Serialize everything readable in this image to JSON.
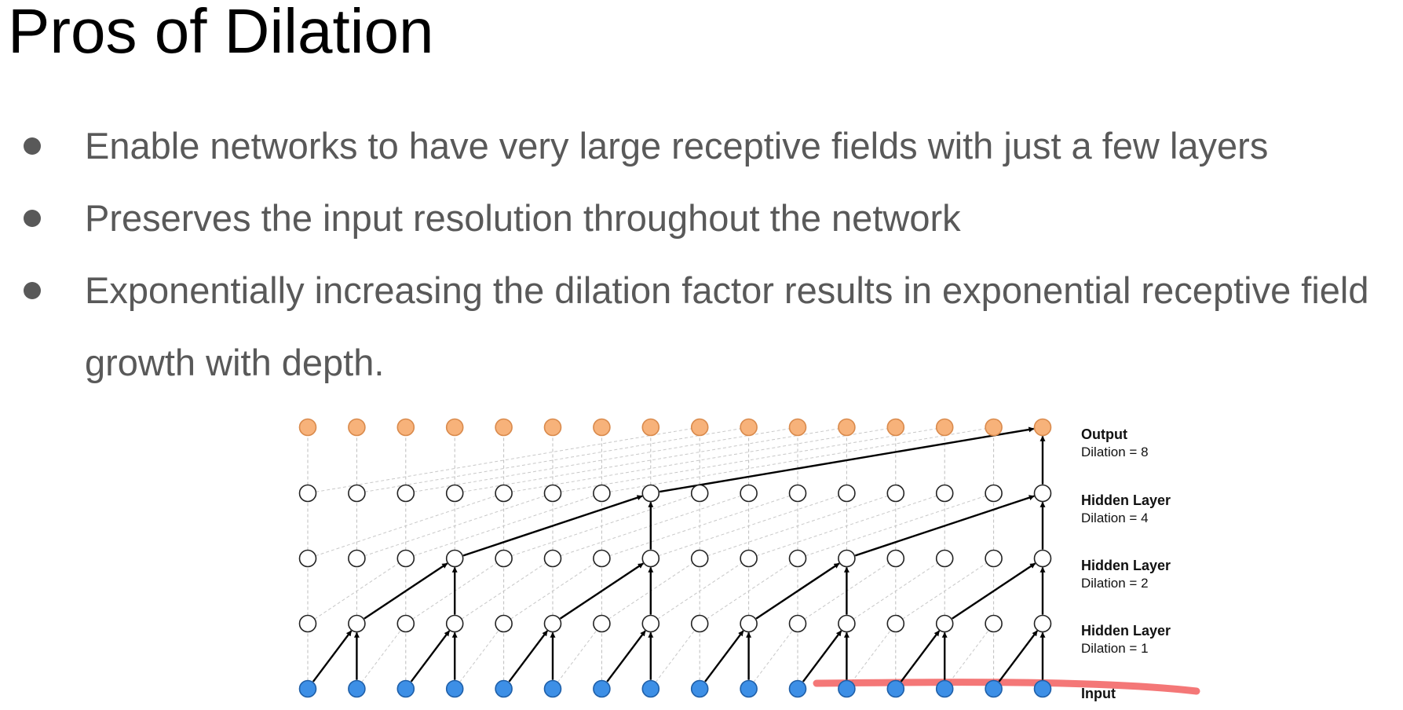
{
  "slide": {
    "title": "Pros of Dilation",
    "bullets": [
      "Enable networks to have very large receptive fields with just a few layers",
      "Preserves the input resolution throughout the network",
      "Exponentially increasing the dilation factor results in exponential receptive field growth with depth."
    ]
  },
  "diagram": {
    "nodes_per_layer": 16,
    "layers": [
      {
        "name": "Output",
        "dilation": "Dilation = 8",
        "fill": "#f7b27a",
        "stroke": "#d98a4c"
      },
      {
        "name": "Hidden Layer",
        "dilation": "Dilation = 4",
        "fill": "#ffffff",
        "stroke": "#222222"
      },
      {
        "name": "Hidden Layer",
        "dilation": "Dilation = 2",
        "fill": "#ffffff",
        "stroke": "#222222"
      },
      {
        "name": "Hidden Layer",
        "dilation": "Dilation = 1",
        "fill": "#ffffff",
        "stroke": "#222222"
      },
      {
        "name": "Input",
        "dilation": "",
        "fill": "#3d8fe6",
        "stroke": "#1f5fa8"
      }
    ],
    "highlight_color": "#f04a4a"
  }
}
